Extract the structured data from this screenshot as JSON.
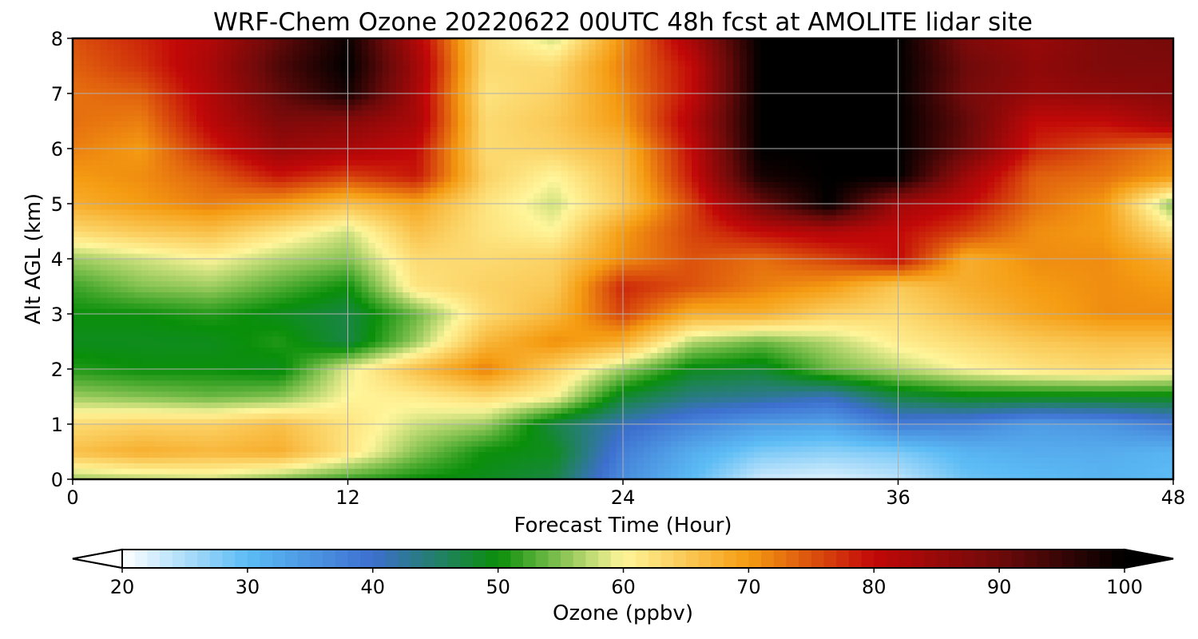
{
  "chart_data": {
    "type": "heatmap",
    "title": "WRF-Chem Ozone  20220622 00UTC 48h fcst at AMOLITE lidar site",
    "xlabel": "Forecast Time (Hour)",
    "ylabel": "Alt AGL (km)",
    "xlim": [
      0,
      48
    ],
    "ylim": [
      0,
      8
    ],
    "xticks": [
      0,
      12,
      24,
      36,
      48
    ],
    "yticks": [
      0,
      1,
      2,
      3,
      4,
      5,
      6,
      7,
      8
    ],
    "grid": true,
    "colorbar": {
      "label": "Ozone  (ppbv)",
      "min": 20,
      "max": 100,
      "ticks": [
        20,
        30,
        40,
        50,
        60,
        70,
        80,
        90,
        100
      ],
      "extend": "both",
      "stops": [
        {
          "value": 20,
          "color": "#ffffff"
        },
        {
          "value": 30,
          "color": "#5cbcf5"
        },
        {
          "value": 40,
          "color": "#3d6fcf"
        },
        {
          "value": 50,
          "color": "#0a8f0a"
        },
        {
          "value": 60,
          "color": "#fff59a"
        },
        {
          "value": 70,
          "color": "#f59c12"
        },
        {
          "value": 80,
          "color": "#c20808"
        },
        {
          "value": 90,
          "color": "#6e0a0a"
        },
        {
          "value": 100,
          "color": "#000000"
        }
      ]
    },
    "x": [
      0,
      3,
      6,
      9,
      12,
      15,
      18,
      21,
      24,
      27,
      30,
      33,
      36,
      39,
      42,
      45,
      48
    ],
    "y": [
      0,
      0.5,
      1,
      1.5,
      2,
      2.5,
      3,
      3.5,
      4,
      4.5,
      5,
      5.5,
      6,
      6.5,
      7,
      7.5,
      8
    ],
    "z": [
      [
        56,
        57,
        58,
        55,
        52,
        50,
        49,
        47,
        36,
        30,
        23,
        22,
        24,
        29,
        30,
        31,
        30
      ],
      [
        66,
        68,
        67,
        68,
        62,
        55,
        50,
        49,
        38,
        32,
        28,
        27,
        28,
        31,
        32,
        32,
        31
      ],
      [
        63,
        64,
        64,
        66,
        62,
        58,
        56,
        47,
        41,
        37,
        34,
        33,
        38,
        37,
        34,
        35,
        38
      ],
      [
        56,
        55,
        54,
        55,
        60,
        61,
        63,
        60,
        48,
        44,
        43,
        41,
        47,
        49,
        49,
        49,
        49
      ],
      [
        51,
        50,
        50,
        49,
        59,
        66,
        72,
        64,
        56,
        49,
        48,
        54,
        57,
        60,
        62,
        63,
        62
      ],
      [
        49,
        49,
        49,
        51,
        47,
        56,
        67,
        71,
        68,
        57,
        54,
        57,
        61,
        63,
        65,
        66,
        66
      ],
      [
        50,
        50,
        51,
        49,
        47,
        54,
        63,
        67,
        76,
        68,
        68,
        64,
        63,
        66,
        69,
        71,
        71
      ],
      [
        52,
        55,
        56,
        53,
        50,
        62,
        64,
        65,
        78,
        75,
        72,
        70,
        65,
        68,
        70,
        71,
        70
      ],
      [
        56,
        58,
        60,
        57,
        55,
        63,
        63,
        64,
        71,
        75,
        73,
        76,
        80,
        68,
        71,
        71,
        68
      ],
      [
        63,
        65,
        66,
        62,
        58,
        66,
        62,
        60,
        70,
        76,
        80,
        82,
        80,
        76,
        71,
        70,
        62
      ],
      [
        68,
        70,
        72,
        70,
        66,
        69,
        62,
        58,
        65,
        76,
        90,
        100,
        84,
        80,
        73,
        70,
        55
      ],
      [
        70,
        71,
        74,
        79,
        76,
        79,
        64,
        60,
        66,
        79,
        98,
        100,
        100,
        84,
        74,
        73,
        70
      ],
      [
        72,
        70,
        78,
        85,
        83,
        80,
        63,
        64,
        67,
        80,
        100,
        100,
        100,
        90,
        78,
        75,
        72
      ],
      [
        73,
        72,
        81,
        88,
        87,
        83,
        63,
        65,
        70,
        82,
        100,
        100,
        100,
        91,
        80,
        80,
        84
      ],
      [
        73,
        74,
        82,
        91,
        98,
        83,
        62,
        64,
        71,
        80,
        100,
        100,
        100,
        89,
        85,
        86,
        87
      ],
      [
        74,
        77,
        83,
        93,
        100,
        84,
        63,
        63,
        72,
        80,
        100,
        100,
        100,
        90,
        86,
        88,
        88
      ],
      [
        75,
        78,
        82,
        91,
        99,
        82,
        63,
        58,
        71,
        83,
        100,
        100,
        100,
        88,
        85,
        88,
        89
      ]
    ]
  }
}
